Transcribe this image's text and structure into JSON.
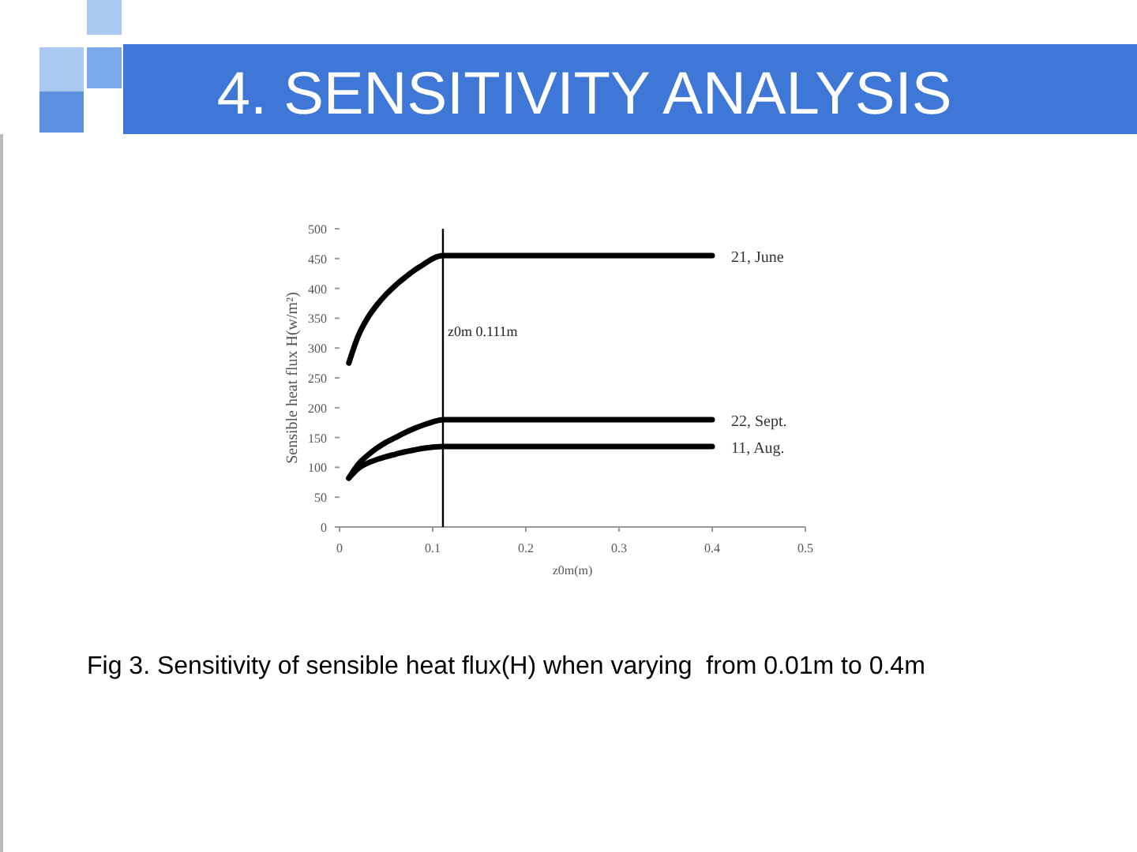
{
  "chart_data": {
    "type": "line",
    "title": "4. SENSITIVITY ANALYSIS",
    "xlabel": "z0m(m)",
    "ylabel": "Sensible heat flux H(w/m²)",
    "x": [
      0.01,
      0.02,
      0.03,
      0.04,
      0.05,
      0.06,
      0.07,
      0.08,
      0.09,
      0.1,
      0.111,
      0.4
    ],
    "series": [
      {
        "name": "21, June",
        "color": "#000000",
        "values": [
          275,
          320,
          350,
          372,
          390,
          405,
          418,
          430,
          440,
          450,
          455,
          455
        ]
      },
      {
        "name": "22, Sept.",
        "color": "#000000",
        "values": [
          82,
          105,
          120,
          132,
          142,
          150,
          158,
          165,
          171,
          176,
          180,
          180
        ]
      },
      {
        "name": "11, Aug.",
        "color": "#000000",
        "values": [
          82,
          98,
          107,
          113,
          118,
          122,
          126,
          129,
          132,
          134,
          135,
          135
        ]
      }
    ],
    "xlim": [
      0,
      0.5
    ],
    "xticks": [
      0,
      0.1,
      0.2,
      0.3,
      0.4,
      0.5
    ],
    "ylim": [
      0,
      500
    ],
    "yticks": [
      0,
      50,
      100,
      150,
      200,
      250,
      300,
      350,
      400,
      450,
      500
    ],
    "ref_lines": [
      {
        "axis": "x",
        "value": 0.111,
        "label": "z0m 0.111m",
        "color": "#000000"
      }
    ],
    "grid": false,
    "marker": "none",
    "line_style": "solid",
    "annotations": [
      "Fig 3. Sensitivity of sensible heat flux(H) when varying  from 0.01m to 0.4m"
    ]
  }
}
